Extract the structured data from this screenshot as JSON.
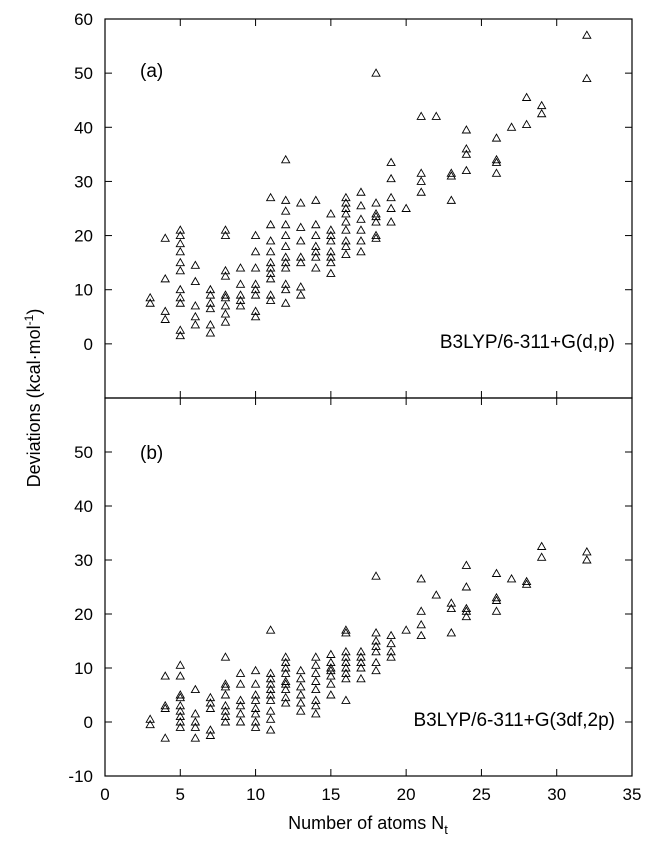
{
  "chart_data": [
    {
      "type": "scatter",
      "panel_label": "(a)",
      "annotation": "B3LYP/6-311+G(d,p)",
      "xlim": [
        0,
        35
      ],
      "ylim": [
        -10,
        60
      ],
      "x_ticks": [
        0,
        5,
        10,
        15,
        20,
        25,
        30,
        35
      ],
      "y_ticks": [
        0,
        10,
        20,
        30,
        40,
        50,
        60
      ],
      "marker": "open-triangle",
      "color": "#000000",
      "grid": false,
      "points": [
        [
          3,
          7.5
        ],
        [
          3,
          8.5
        ],
        [
          4,
          4.5
        ],
        [
          4,
          6
        ],
        [
          4,
          12
        ],
        [
          4,
          19.5
        ],
        [
          5,
          1.5
        ],
        [
          5,
          2.5
        ],
        [
          5,
          7.5
        ],
        [
          5,
          8.5
        ],
        [
          5,
          10
        ],
        [
          5,
          13.5
        ],
        [
          5,
          15
        ],
        [
          5,
          17
        ],
        [
          5,
          18.5
        ],
        [
          5,
          20
        ],
        [
          5,
          21
        ],
        [
          6,
          3.5
        ],
        [
          6,
          5
        ],
        [
          6,
          7
        ],
        [
          6,
          11.5
        ],
        [
          6,
          14.5
        ],
        [
          7,
          2
        ],
        [
          7,
          3.5
        ],
        [
          7,
          6.5
        ],
        [
          7,
          7.5
        ],
        [
          7,
          9
        ],
        [
          7,
          10
        ],
        [
          8,
          4
        ],
        [
          8,
          5.5
        ],
        [
          8,
          7
        ],
        [
          8,
          8.5
        ],
        [
          8,
          9
        ],
        [
          8,
          12.5
        ],
        [
          8,
          13.5
        ],
        [
          8,
          20
        ],
        [
          8,
          21
        ],
        [
          9,
          7
        ],
        [
          9,
          8
        ],
        [
          9,
          9
        ],
        [
          9,
          11
        ],
        [
          9,
          14
        ],
        [
          10,
          5
        ],
        [
          10,
          6
        ],
        [
          10,
          9
        ],
        [
          10,
          10
        ],
        [
          10,
          11
        ],
        [
          10,
          14
        ],
        [
          10,
          17
        ],
        [
          10,
          20
        ],
        [
          11,
          8
        ],
        [
          11,
          9
        ],
        [
          11,
          12
        ],
        [
          11,
          13
        ],
        [
          11,
          14
        ],
        [
          11,
          15
        ],
        [
          11,
          17
        ],
        [
          11,
          19
        ],
        [
          11,
          22
        ],
        [
          11,
          27
        ],
        [
          12,
          7.5
        ],
        [
          12,
          10
        ],
        [
          12,
          11
        ],
        [
          12,
          14
        ],
        [
          12,
          15
        ],
        [
          12,
          16
        ],
        [
          12,
          18
        ],
        [
          12,
          20
        ],
        [
          12,
          22
        ],
        [
          12,
          24.5
        ],
        [
          12,
          26.5
        ],
        [
          12,
          34
        ],
        [
          13,
          9
        ],
        [
          13,
          10.5
        ],
        [
          13,
          15
        ],
        [
          13,
          16
        ],
        [
          13,
          19
        ],
        [
          13,
          21.5
        ],
        [
          13,
          26
        ],
        [
          14,
          14
        ],
        [
          14,
          16
        ],
        [
          14,
          17
        ],
        [
          14,
          18
        ],
        [
          14,
          20
        ],
        [
          14,
          22
        ],
        [
          14,
          26.5
        ],
        [
          15,
          13
        ],
        [
          15,
          15
        ],
        [
          15,
          16
        ],
        [
          15,
          17
        ],
        [
          15,
          19
        ],
        [
          15,
          20
        ],
        [
          15,
          21
        ],
        [
          15,
          24
        ],
        [
          16,
          16.5
        ],
        [
          16,
          18
        ],
        [
          16,
          19
        ],
        [
          16,
          21
        ],
        [
          16,
          22.5
        ],
        [
          16,
          24
        ],
        [
          16,
          25
        ],
        [
          16,
          26
        ],
        [
          16,
          27
        ],
        [
          17,
          17
        ],
        [
          17,
          19
        ],
        [
          17,
          21
        ],
        [
          17,
          23
        ],
        [
          17,
          25.5
        ],
        [
          17,
          28
        ],
        [
          18,
          19.5
        ],
        [
          18,
          20
        ],
        [
          18,
          22.5
        ],
        [
          18,
          23.5
        ],
        [
          18,
          24
        ],
        [
          18,
          26
        ],
        [
          18,
          50
        ],
        [
          19,
          22.5
        ],
        [
          19,
          25
        ],
        [
          19,
          27
        ],
        [
          19,
          30.5
        ],
        [
          19,
          33.5
        ],
        [
          20,
          25
        ],
        [
          21,
          28
        ],
        [
          21,
          30
        ],
        [
          21,
          31.5
        ],
        [
          21,
          42
        ],
        [
          22,
          42
        ],
        [
          23,
          26.5
        ],
        [
          23,
          31
        ],
        [
          23,
          31.5
        ],
        [
          24,
          32
        ],
        [
          24,
          35
        ],
        [
          24,
          36
        ],
        [
          24,
          39.5
        ],
        [
          26,
          31.5
        ],
        [
          26,
          33.5
        ],
        [
          26,
          34
        ],
        [
          26,
          38
        ],
        [
          27,
          40
        ],
        [
          28,
          40.5
        ],
        [
          28,
          45.5
        ],
        [
          29,
          42.5
        ],
        [
          29,
          44
        ],
        [
          32,
          49
        ],
        [
          32,
          57
        ]
      ]
    },
    {
      "type": "scatter",
      "panel_label": "(b)",
      "annotation": "B3LYP/6-311+G(3df,2p)",
      "xlim": [
        0,
        35
      ],
      "ylim": [
        -10,
        60
      ],
      "x_ticks": [
        0,
        5,
        10,
        15,
        20,
        25,
        30,
        35
      ],
      "y_ticks": [
        -10,
        0,
        10,
        20,
        30,
        40,
        50
      ],
      "marker": "open-triangle",
      "color": "#000000",
      "grid": false,
      "points": [
        [
          3,
          -0.5
        ],
        [
          3,
          0.5
        ],
        [
          4,
          -3
        ],
        [
          4,
          2.5
        ],
        [
          4,
          3
        ],
        [
          4,
          8.5
        ],
        [
          5,
          -1
        ],
        [
          5,
          0
        ],
        [
          5,
          1
        ],
        [
          5,
          2
        ],
        [
          5,
          3
        ],
        [
          5,
          4.5
        ],
        [
          5,
          5
        ],
        [
          5,
          8.5
        ],
        [
          5,
          10.5
        ],
        [
          6,
          -3
        ],
        [
          6,
          -1
        ],
        [
          6,
          0
        ],
        [
          6,
          1.5
        ],
        [
          6,
          6
        ],
        [
          7,
          -2.5
        ],
        [
          7,
          -1.5
        ],
        [
          7,
          2.5
        ],
        [
          7,
          3.5
        ],
        [
          7,
          4.5
        ],
        [
          8,
          0
        ],
        [
          8,
          1
        ],
        [
          8,
          2
        ],
        [
          8,
          3
        ],
        [
          8,
          5
        ],
        [
          8,
          6.5
        ],
        [
          8,
          7
        ],
        [
          8,
          12
        ],
        [
          9,
          0
        ],
        [
          9,
          1.5
        ],
        [
          9,
          3
        ],
        [
          9,
          4
        ],
        [
          9,
          7
        ],
        [
          9,
          9
        ],
        [
          10,
          -1
        ],
        [
          10,
          0
        ],
        [
          10,
          1.5
        ],
        [
          10,
          2.5
        ],
        [
          10,
          4
        ],
        [
          10,
          5
        ],
        [
          10,
          7
        ],
        [
          10,
          9.5
        ],
        [
          11,
          -1.5
        ],
        [
          11,
          0.5
        ],
        [
          11,
          2
        ],
        [
          11,
          4
        ],
        [
          11,
          5
        ],
        [
          11,
          6
        ],
        [
          11,
          7
        ],
        [
          11,
          8
        ],
        [
          11,
          9
        ],
        [
          11,
          17
        ],
        [
          12,
          3.5
        ],
        [
          12,
          4.5
        ],
        [
          12,
          6
        ],
        [
          12,
          7
        ],
        [
          12,
          7.5
        ],
        [
          12,
          9
        ],
        [
          12,
          10
        ],
        [
          12,
          11
        ],
        [
          12,
          12
        ],
        [
          13,
          2
        ],
        [
          13,
          3.5
        ],
        [
          13,
          5
        ],
        [
          13,
          6.5
        ],
        [
          13,
          8
        ],
        [
          13,
          9.5
        ],
        [
          14,
          1.5
        ],
        [
          14,
          3
        ],
        [
          14,
          4
        ],
        [
          14,
          6
        ],
        [
          14,
          7.5
        ],
        [
          14,
          9
        ],
        [
          14,
          10.5
        ],
        [
          14,
          12
        ],
        [
          15,
          5
        ],
        [
          15,
          7
        ],
        [
          15,
          8.5
        ],
        [
          15,
          9.5
        ],
        [
          15,
          10
        ],
        [
          15,
          11
        ],
        [
          15,
          12.5
        ],
        [
          16,
          4
        ],
        [
          16,
          8
        ],
        [
          16,
          9
        ],
        [
          16,
          10
        ],
        [
          16,
          11
        ],
        [
          16,
          12
        ],
        [
          16,
          13
        ],
        [
          16,
          16.5
        ],
        [
          16,
          17
        ],
        [
          17,
          8
        ],
        [
          17,
          10
        ],
        [
          17,
          11
        ],
        [
          17,
          12
        ],
        [
          17,
          13
        ],
        [
          18,
          9.5
        ],
        [
          18,
          11
        ],
        [
          18,
          13
        ],
        [
          18,
          14
        ],
        [
          18,
          15
        ],
        [
          18,
          16.5
        ],
        [
          18,
          27
        ],
        [
          19,
          12
        ],
        [
          19,
          13
        ],
        [
          19,
          14.5
        ],
        [
          19,
          16
        ],
        [
          20,
          17
        ],
        [
          21,
          16
        ],
        [
          21,
          18
        ],
        [
          21,
          20.5
        ],
        [
          21,
          26.5
        ],
        [
          22,
          23.5
        ],
        [
          23,
          16.5
        ],
        [
          23,
          21
        ],
        [
          23,
          22
        ],
        [
          24,
          19.5
        ],
        [
          24,
          20.5
        ],
        [
          24,
          21
        ],
        [
          24,
          25
        ],
        [
          24,
          29
        ],
        [
          26,
          20.5
        ],
        [
          26,
          22.5
        ],
        [
          26,
          23
        ],
        [
          26,
          27.5
        ],
        [
          27,
          26.5
        ],
        [
          28,
          25.5
        ],
        [
          28,
          26
        ],
        [
          29,
          30.5
        ],
        [
          29,
          32.5
        ],
        [
          32,
          30
        ],
        [
          32,
          31.5
        ]
      ]
    }
  ],
  "axes": {
    "xlabel": "Number of atoms N",
    "xlabel_sub": "t",
    "ylabel": "Deviations (kcal·mol",
    "ylabel_sup": "-1",
    "ylabel_close": ")"
  }
}
